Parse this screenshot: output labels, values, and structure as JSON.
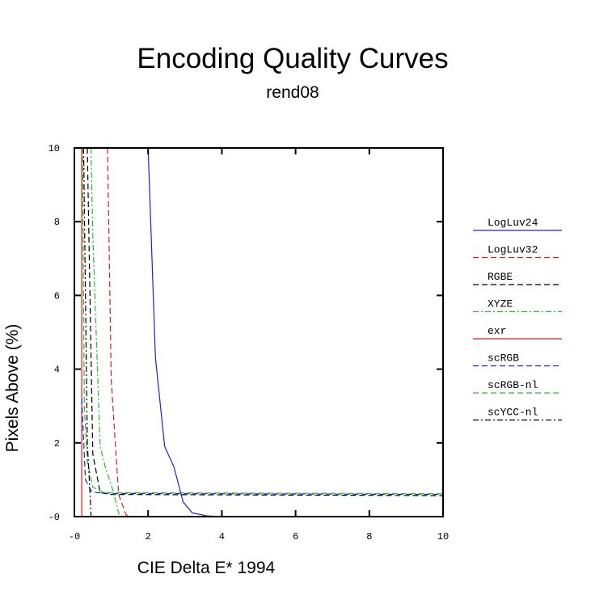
{
  "chart_data": {
    "type": "line",
    "title": "Encoding Quality Curves",
    "subtitle": "rend08",
    "xlabel": "CIE Delta E* 1994",
    "ylabel": "Pixels Above (%)",
    "xlim": [
      0,
      10
    ],
    "ylim": [
      0,
      10
    ],
    "x_ticks": [
      "-0",
      "2",
      "4",
      "6",
      "8",
      "10"
    ],
    "y_ticks": [
      "-0",
      "2",
      "4",
      "6",
      "8",
      "10"
    ],
    "grid": false,
    "legend_placement": "right",
    "series": [
      {
        "name": "LogLuv24",
        "color": "#2020d0",
        "dash": "solid",
        "points": [
          [
            2.0,
            10.0
          ],
          [
            2.2,
            4.3
          ],
          [
            2.45,
            1.9
          ],
          [
            2.7,
            1.35
          ],
          [
            2.95,
            0.4
          ],
          [
            3.2,
            0.1
          ],
          [
            3.6,
            0.02
          ],
          [
            4.0,
            0.0
          ],
          [
            10.0,
            0.0
          ]
        ]
      },
      {
        "name": "LogLuv32",
        "color": "#d02020",
        "dash": "dashed",
        "points": [
          [
            0.9,
            10.0
          ],
          [
            1.0,
            3.7
          ],
          [
            1.2,
            0.6
          ],
          [
            1.4,
            0.05
          ],
          [
            1.5,
            0.0
          ],
          [
            10.0,
            0.0
          ]
        ]
      },
      {
        "name": "RGBE",
        "color": "#000000",
        "dash": "dashed",
        "points": [
          [
            0.35,
            10.0
          ],
          [
            0.5,
            1.7
          ],
          [
            0.7,
            0.65
          ],
          [
            1.0,
            0.6
          ],
          [
            10.0,
            0.57
          ]
        ]
      },
      {
        "name": "XYZE",
        "color": "#20c020",
        "dash": "dashdot",
        "points": [
          [
            0.45,
            10.0
          ],
          [
            0.5,
            7.6
          ],
          [
            0.7,
            1.9
          ],
          [
            0.85,
            1.3
          ],
          [
            1.05,
            0.7
          ],
          [
            1.2,
            0.1
          ],
          [
            1.25,
            0.0
          ],
          [
            10.0,
            0.0
          ]
        ]
      },
      {
        "name": "exr",
        "color": "#d02020",
        "dash": "solid",
        "points": [
          [
            0.2,
            10.0
          ],
          [
            0.2,
            0.0
          ],
          [
            10.0,
            0.0
          ]
        ]
      },
      {
        "name": "scRGB",
        "color": "#2020d0",
        "dash": "dashed",
        "points": [
          [
            0.2,
            3.2
          ],
          [
            0.3,
            1.0
          ],
          [
            0.45,
            0.7
          ],
          [
            0.6,
            0.65
          ],
          [
            1.0,
            0.63
          ],
          [
            10.0,
            0.6
          ]
        ]
      },
      {
        "name": "scRGB-nl",
        "color": "#20c020",
        "dash": "dashed",
        "points": [
          [
            0.22,
            10.0
          ],
          [
            0.27,
            3.0
          ],
          [
            0.35,
            1.5
          ],
          [
            0.5,
            0.8
          ],
          [
            0.8,
            0.65
          ],
          [
            10.0,
            0.62
          ]
        ]
      },
      {
        "name": "scYCC-nl",
        "color": "#000000",
        "dash": "dashdot",
        "points": [
          [
            0.25,
            10.0
          ],
          [
            0.35,
            2.0
          ],
          [
            0.42,
            0.7
          ],
          [
            0.45,
            0.05
          ],
          [
            0.46,
            0.0
          ],
          [
            10.0,
            0.0
          ]
        ]
      }
    ]
  }
}
